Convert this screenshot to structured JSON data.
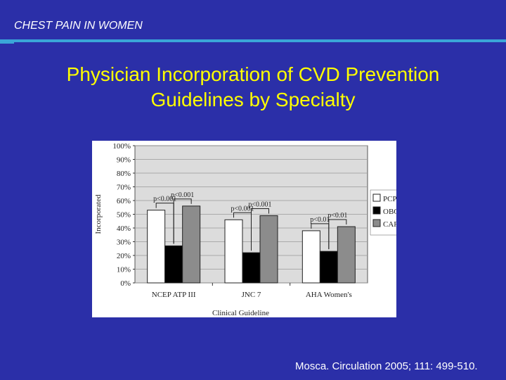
{
  "header": {
    "title": "CHEST PAIN IN WOMEN"
  },
  "slide": {
    "title_line1": "Physician Incorporation of CVD Prevention",
    "title_line2": "Guidelines by Specialty"
  },
  "citation": "Mosca. Circulation 2005; 111: 499-510.",
  "colors": {
    "background": "#2b2fa8",
    "title": "#ffff00",
    "accent_rule": "#3aa6d8"
  },
  "chart_data": {
    "type": "bar",
    "title": "",
    "xlabel": "Clinical Guideline",
    "ylabel": "Incorporated",
    "ylim": [
      0,
      100
    ],
    "yticks": [
      "0%",
      "10%",
      "20%",
      "30%",
      "40%",
      "50%",
      "60%",
      "70%",
      "80%",
      "90%",
      "100%"
    ],
    "categories": [
      "NCEP ATP III",
      "JNC 7",
      "AHA Women's"
    ],
    "series": [
      {
        "name": "PCP",
        "color": "#ffffff",
        "values": [
          53,
          46,
          38
        ]
      },
      {
        "name": "OBGyn",
        "color": "#000000",
        "values": [
          27,
          22,
          23
        ]
      },
      {
        "name": "CARD",
        "color": "#8c8c8c",
        "values": [
          56,
          49,
          41
        ]
      }
    ],
    "annotations": [
      {
        "text": "p<0.001",
        "category": 0,
        "from": 0,
        "to": 1
      },
      {
        "text": "p<0.001",
        "category": 0,
        "from": 1,
        "to": 2
      },
      {
        "text": "p<0.001",
        "category": 1,
        "from": 0,
        "to": 1
      },
      {
        "text": "p<0.001",
        "category": 1,
        "from": 1,
        "to": 2
      },
      {
        "text": "p<0.01",
        "category": 2,
        "from": 0,
        "to": 1
      },
      {
        "text": "p<0.01",
        "category": 2,
        "from": 1,
        "to": 2
      }
    ],
    "legend": "right"
  }
}
